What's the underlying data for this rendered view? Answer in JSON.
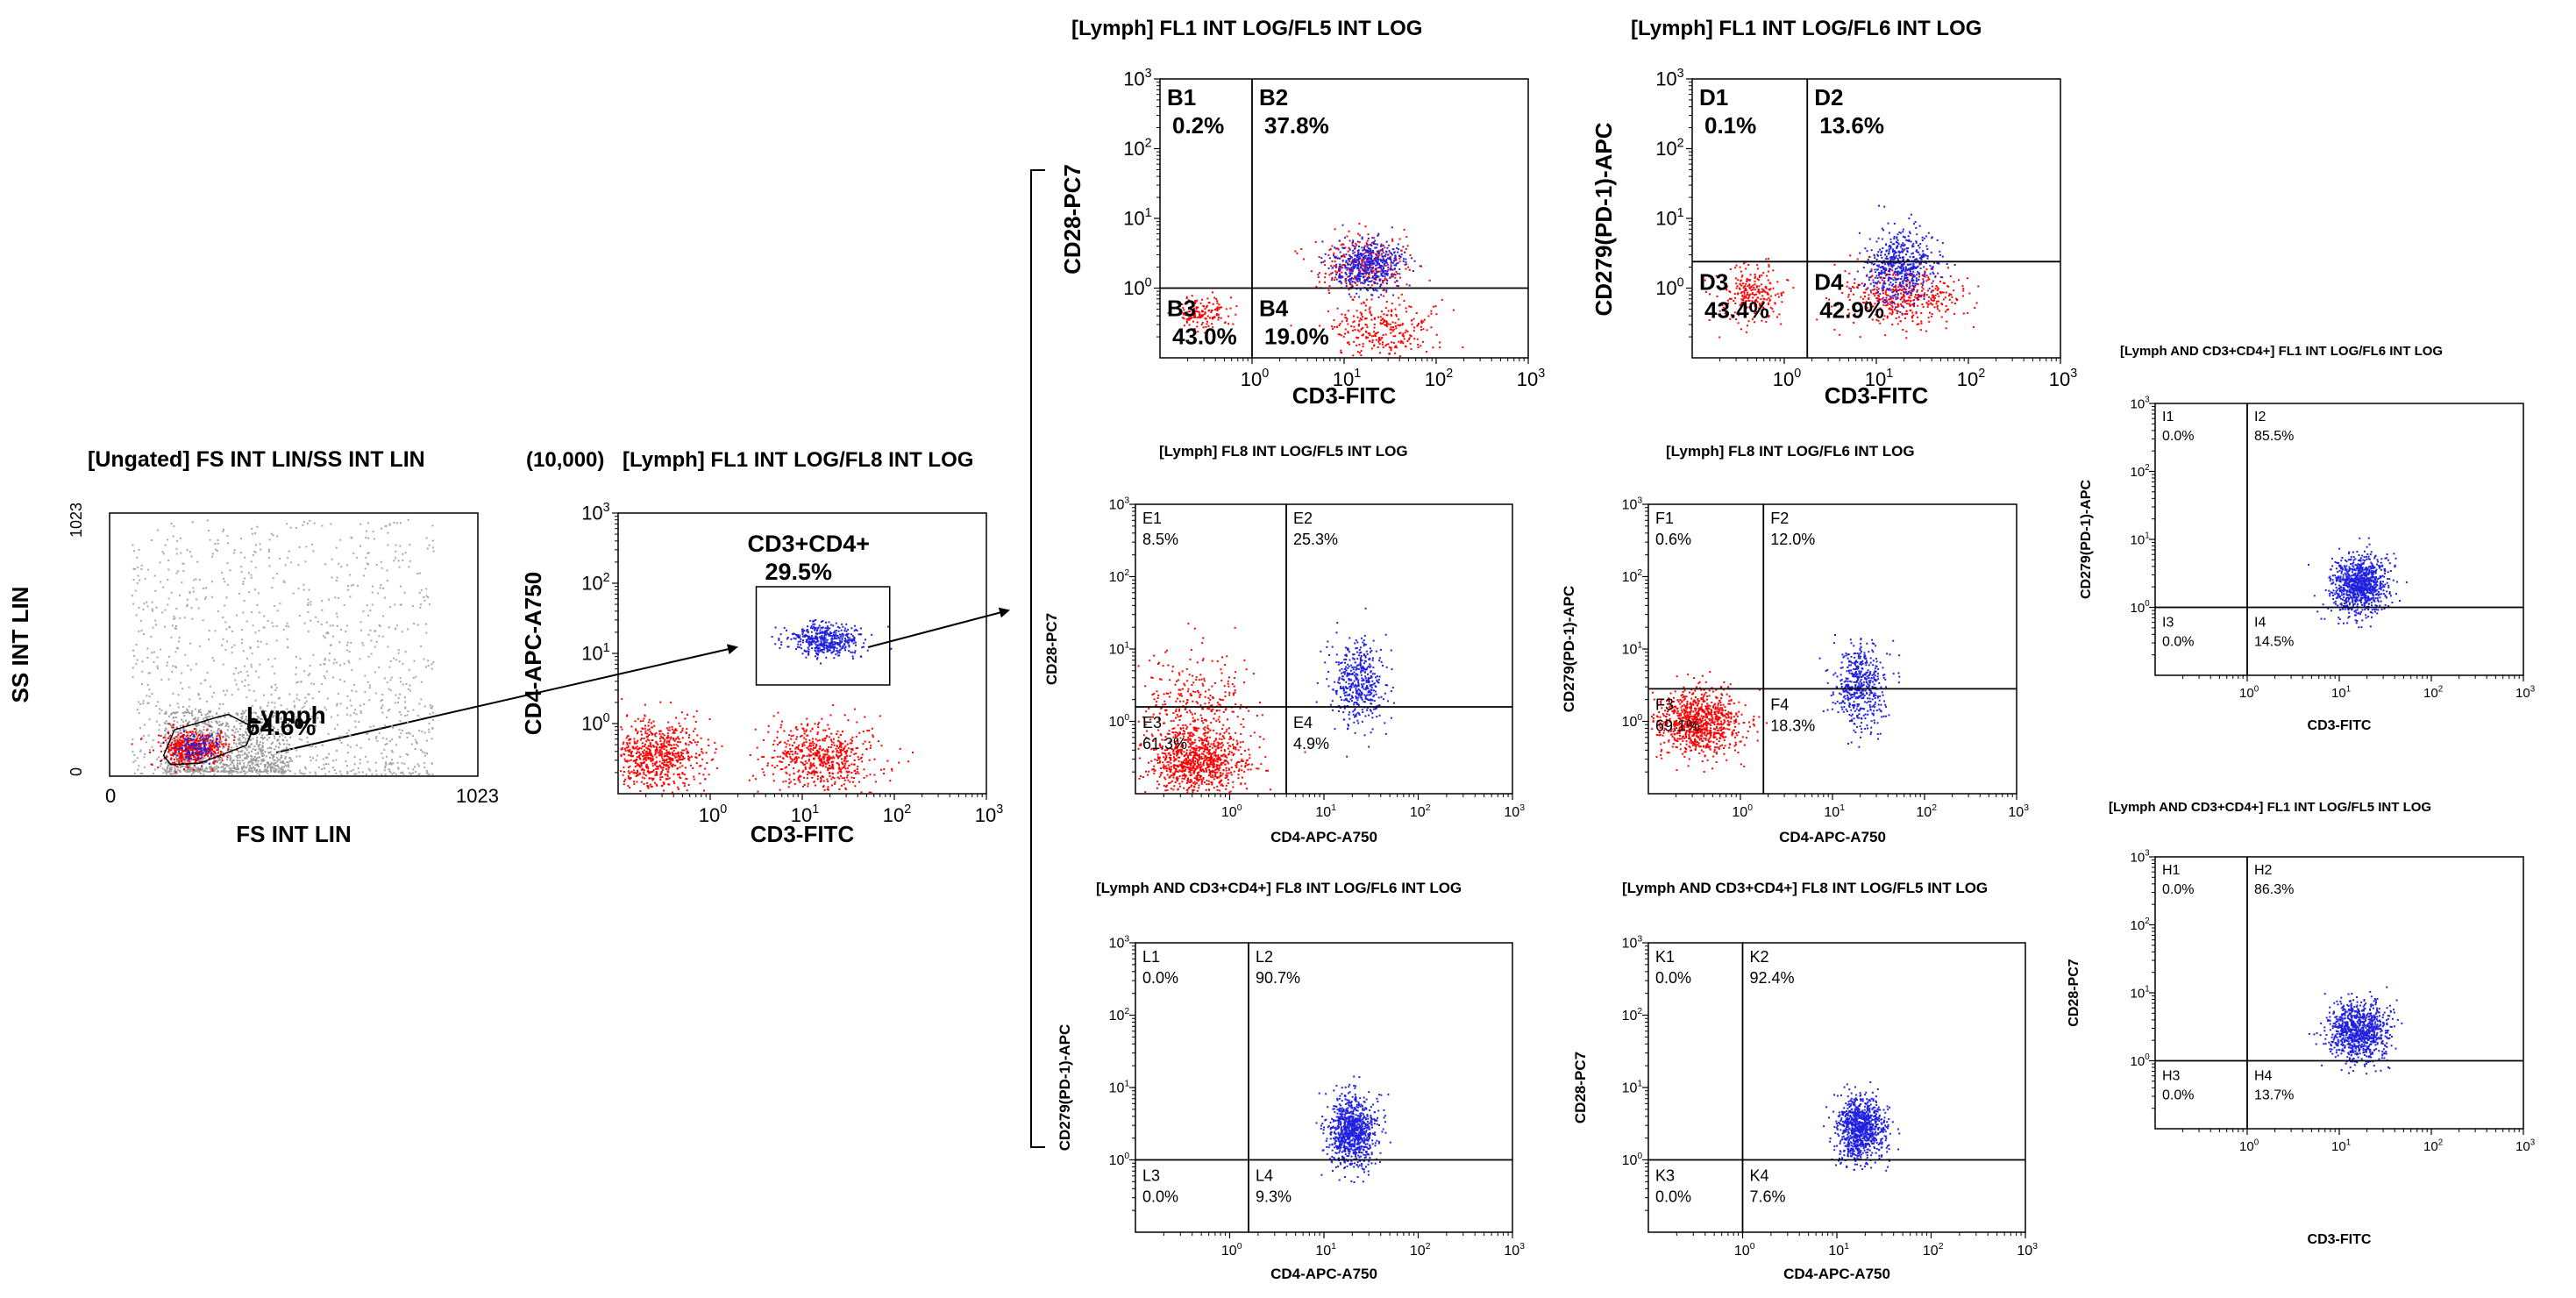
{
  "chart_data": [
    {
      "id": "scatter",
      "type": "scatter",
      "title": "[Ungated] FS INT LIN/SS INT LIN",
      "xlabel": "FS INT LIN",
      "ylabel": "SS INT LIN",
      "xscale": "linear",
      "yscale": "linear",
      "xlim": [
        0,
        1023
      ],
      "ylim": [
        0,
        1023
      ],
      "xticks": [
        {
          "v": 0,
          "label": "0"
        },
        {
          "v": 1023,
          "label": "1023"
        }
      ],
      "yticks": [
        {
          "v": 0,
          "label": "0"
        },
        {
          "v": 1023,
          "label": "1023"
        }
      ],
      "gates": [
        {
          "name": "Lymph",
          "percent": "64.6%",
          "polygon": [
            [
              150,
              80
            ],
            [
              180,
              180
            ],
            [
              300,
              230
            ],
            [
              330,
              240
            ],
            [
              400,
              190
            ],
            [
              380,
              120
            ],
            [
              250,
              50
            ],
            [
              170,
              45
            ]
          ]
        }
      ],
      "populations": [
        {
          "name": "all-events",
          "color": "#a8a8a8",
          "n": 1200,
          "x": [
            60,
            900
          ],
          "y": [
            10,
            1000
          ],
          "dist": "uniform"
        },
        {
          "name": "all-events-dense",
          "color": "#9a9a9a",
          "n": 900,
          "x": [
            150,
            500
          ],
          "y": [
            20,
            260
          ],
          "dist": "uniform"
        },
        {
          "name": "lymph-core-red",
          "color": "#ff0000",
          "n": 500,
          "cx": 230,
          "cy": 110,
          "sx": 45,
          "sy": 35
        },
        {
          "name": "lymph-core-blue",
          "color": "#2020e0",
          "n": 120,
          "cx": 240,
          "cy": 115,
          "sx": 30,
          "sy": 25
        }
      ]
    },
    {
      "id": "P1",
      "type": "scatter",
      "prefix": "(10,000)",
      "title": "[Lymph] FL1 INT LOG/FL8 INT LOG",
      "xlabel": "CD3-FITC",
      "ylabel": "CD4-APC-A750",
      "xscale": "log",
      "yscale": "log",
      "xlim": [
        -1,
        3
      ],
      "ylim": [
        -1,
        3
      ],
      "gates": [
        {
          "name": "CD3+CD4+",
          "percent": "29.5%",
          "x": [
            0.5,
            1.95
          ],
          "y": [
            0.55,
            1.95
          ]
        }
      ],
      "populations": [
        {
          "name": "cd3neg-cd4neg",
          "color": "#ff0000",
          "n": 700,
          "cx": -0.6,
          "cy": -0.45,
          "sx": 0.25,
          "sy": 0.25
        },
        {
          "name": "cd3pos-cd4neg",
          "color": "#ff0000",
          "n": 600,
          "cx": 1.2,
          "cy": -0.45,
          "sx": 0.3,
          "sy": 0.25
        },
        {
          "name": "cd3pos-cd4pos",
          "color": "#2020e0",
          "n": 450,
          "cx": 1.25,
          "cy": 1.2,
          "sx": 0.2,
          "sy": 0.12
        }
      ]
    },
    {
      "id": "B",
      "type": "scatter",
      "title": "[Lymph] FL1 INT LOG/FL5 INT LOG",
      "xlabel": "CD3-FITC",
      "ylabel": "CD28-PC7",
      "xscale": "log",
      "yscale": "log",
      "xlim": [
        -1,
        3
      ],
      "ylim": [
        -1,
        3
      ],
      "quad": {
        "x": 0.0,
        "y": 0.0
      },
      "quadrants": [
        {
          "id": "B1",
          "label": "B1",
          "percent": "0.2%"
        },
        {
          "id": "B2",
          "label": "B2",
          "percent": "37.8%"
        },
        {
          "id": "B3",
          "label": "B3",
          "percent": "43.0%"
        },
        {
          "id": "B4",
          "label": "B4",
          "percent": "19.0%"
        }
      ],
      "populations": [
        {
          "name": "b3",
          "color": "#ff0000",
          "n": 150,
          "cx": -0.55,
          "cy": -0.35,
          "sx": 0.15,
          "sy": 0.12
        },
        {
          "name": "b2-red",
          "color": "#ff0000",
          "n": 300,
          "cx": 1.2,
          "cy": 0.35,
          "sx": 0.25,
          "sy": 0.2
        },
        {
          "name": "b4",
          "color": "#ff0000",
          "n": 300,
          "cx": 1.4,
          "cy": -0.55,
          "sx": 0.3,
          "sy": 0.22
        },
        {
          "name": "b2-blue",
          "color": "#2020e0",
          "n": 500,
          "cx": 1.25,
          "cy": 0.35,
          "sx": 0.2,
          "sy": 0.18
        }
      ]
    },
    {
      "id": "D",
      "type": "scatter",
      "title": "[Lymph] FL1 INT LOG/FL6 INT LOG",
      "xlabel": "CD3-FITC",
      "ylabel": "CD279(PD-1)-APC",
      "xscale": "log",
      "yscale": "log",
      "xlim": [
        -1,
        3
      ],
      "ylim": [
        -1,
        3
      ],
      "quad": {
        "x": 0.25,
        "y": 0.38
      },
      "quadrants": [
        {
          "id": "D1",
          "label": "D1",
          "percent": "0.1%"
        },
        {
          "id": "D2",
          "label": "D2",
          "percent": "13.6%"
        },
        {
          "id": "D3",
          "label": "D3",
          "percent": "43.4%"
        },
        {
          "id": "D4",
          "label": "D4",
          "percent": "42.9%"
        }
      ],
      "populations": [
        {
          "name": "d3",
          "color": "#ff0000",
          "n": 250,
          "cx": -0.35,
          "cy": -0.05,
          "sx": 0.18,
          "sy": 0.2
        },
        {
          "name": "d4",
          "color": "#ff0000",
          "n": 450,
          "cx": 1.3,
          "cy": -0.1,
          "sx": 0.32,
          "sy": 0.22
        },
        {
          "name": "d2-blue",
          "color": "#2020e0",
          "n": 550,
          "cx": 1.25,
          "cy": 0.35,
          "sx": 0.18,
          "sy": 0.25
        }
      ]
    },
    {
      "id": "E",
      "type": "scatter",
      "title": "[Lymph] FL8 INT LOG/FL5 INT LOG",
      "xlabel": "CD4-APC-A750",
      "ylabel": "CD28-PC7",
      "xscale": "log",
      "yscale": "log",
      "xlim": [
        -1,
        3
      ],
      "ylim": [
        -1,
        3
      ],
      "quad": {
        "x": 0.6,
        "y": 0.2
      },
      "quadrants": [
        {
          "id": "E1",
          "label": "E1",
          "percent": "8.5%"
        },
        {
          "id": "E2",
          "label": "E2",
          "percent": "25.3%"
        },
        {
          "id": "E3",
          "label": "E3",
          "percent": "61.3%"
        },
        {
          "id": "E4",
          "label": "E4",
          "percent": "4.9%"
        }
      ],
      "populations": [
        {
          "name": "e3-dense",
          "color": "#ff0000",
          "n": 900,
          "cx": -0.35,
          "cy": -0.55,
          "sx": 0.28,
          "sy": 0.22
        },
        {
          "name": "e1-spread",
          "color": "#ff0000",
          "n": 300,
          "cx": -0.35,
          "cy": 0.25,
          "sx": 0.28,
          "sy": 0.35
        },
        {
          "name": "e2-blue",
          "color": "#2020e0",
          "n": 450,
          "cx": 1.35,
          "cy": 0.55,
          "sx": 0.14,
          "sy": 0.28
        }
      ]
    },
    {
      "id": "F",
      "type": "scatter",
      "title": "[Lymph] FL8 INT LOG/FL6 INT LOG",
      "xlabel": "CD4-APC-A750",
      "ylabel": "CD279(PD-1)-APC",
      "xscale": "log",
      "yscale": "log",
      "xlim": [
        -1,
        3
      ],
      "ylim": [
        -1,
        3
      ],
      "quad": {
        "x": 0.25,
        "y": 0.45
      },
      "quadrants": [
        {
          "id": "F1",
          "label": "F1",
          "percent": "0.6%"
        },
        {
          "id": "F2",
          "label": "F2",
          "percent": "12.0%"
        },
        {
          "id": "F3",
          "label": "F3",
          "percent": "69.1%"
        },
        {
          "id": "F4",
          "label": "F4",
          "percent": "18.3%"
        }
      ],
      "populations": [
        {
          "name": "f3",
          "color": "#ff0000",
          "n": 900,
          "cx": -0.45,
          "cy": 0.0,
          "sx": 0.22,
          "sy": 0.22
        },
        {
          "name": "f4-blue",
          "color": "#2020e0",
          "n": 500,
          "cx": 1.3,
          "cy": 0.5,
          "sx": 0.14,
          "sy": 0.28
        }
      ]
    },
    {
      "id": "I",
      "type": "scatter",
      "title": "[Lymph AND CD3+CD4+] FL1 INT LOG/FL6 INT LOG",
      "xlabel": "CD3-FITC",
      "ylabel": "CD279(PD-1)-APC",
      "xscale": "log",
      "yscale": "log",
      "xlim": [
        -1,
        3
      ],
      "ylim": [
        -1,
        3
      ],
      "quad": {
        "x": 0.0,
        "y": 0.0
      },
      "quadrants": [
        {
          "id": "I1",
          "label": "I1",
          "percent": "0.0%"
        },
        {
          "id": "I2",
          "label": "I2",
          "percent": "85.5%"
        },
        {
          "id": "I3",
          "label": "I3",
          "percent": "0.0%"
        },
        {
          "id": "I4",
          "label": "I4",
          "percent": "14.5%"
        }
      ],
      "populations": [
        {
          "name": "i-blue",
          "color": "#2020e0",
          "n": 900,
          "cx": 1.2,
          "cy": 0.35,
          "sx": 0.16,
          "sy": 0.22
        }
      ]
    },
    {
      "id": "H",
      "type": "scatter",
      "title": "[Lymph AND CD3+CD4+] FL1 INT LOG/FL5 INT LOG",
      "xlabel": "CD3-FITC",
      "ylabel": "CD28-PC7",
      "xscale": "log",
      "yscale": "log",
      "xlim": [
        -1,
        3
      ],
      "ylim": [
        -1,
        3
      ],
      "quad": {
        "x": 0.0,
        "y": 0.0
      },
      "quadrants": [
        {
          "id": "H1",
          "label": "H1",
          "percent": "0.0%"
        },
        {
          "id": "H2",
          "label": "H2",
          "percent": "86.3%"
        },
        {
          "id": "H3",
          "label": "H3",
          "percent": "0.0%"
        },
        {
          "id": "H4",
          "label": "H4",
          "percent": "13.7%"
        }
      ],
      "populations": [
        {
          "name": "h-blue",
          "color": "#2020e0",
          "n": 900,
          "cx": 1.2,
          "cy": 0.45,
          "sx": 0.16,
          "sy": 0.22
        }
      ]
    },
    {
      "id": "L",
      "type": "scatter",
      "title": "[Lymph AND CD3+CD4+] FL8 INT LOG/FL6 INT LOG",
      "xlabel": "CD4-APC-A750",
      "ylabel": "CD279(PD-1)-APC",
      "xscale": "log",
      "yscale": "log",
      "xlim": [
        -1,
        3
      ],
      "ylim": [
        -1,
        3
      ],
      "quad": {
        "x": 0.2,
        "y": 0.0
      },
      "quadrants": [
        {
          "id": "L1",
          "label": "L1",
          "percent": "0.0%"
        },
        {
          "id": "L2",
          "label": "L2",
          "percent": "90.7%"
        },
        {
          "id": "L3",
          "label": "L3",
          "percent": "0.0%"
        },
        {
          "id": "L4",
          "label": "L4",
          "percent": "9.3%"
        }
      ],
      "populations": [
        {
          "name": "l-blue",
          "color": "#2020e0",
          "n": 900,
          "cx": 1.3,
          "cy": 0.4,
          "sx": 0.13,
          "sy": 0.25
        }
      ]
    },
    {
      "id": "K",
      "type": "scatter",
      "title": "[Lymph AND CD3+CD4+] FL8 INT LOG/FL5 INT LOG",
      "xlabel": "CD4-APC-A750",
      "ylabel": "CD28-PC7",
      "xscale": "log",
      "yscale": "log",
      "xlim": [
        -1,
        3
      ],
      "ylim": [
        -1,
        3
      ],
      "quad": {
        "x": 0.0,
        "y": 0.0
      },
      "quadrants": [
        {
          "id": "K1",
          "label": "K1",
          "percent": "0.0%"
        },
        {
          "id": "K2",
          "label": "K2",
          "percent": "92.4%"
        },
        {
          "id": "K3",
          "label": "K3",
          "percent": "0.0%"
        },
        {
          "id": "K4",
          "label": "K4",
          "percent": "7.6%"
        }
      ],
      "populations": [
        {
          "name": "k-blue",
          "color": "#2020e0",
          "n": 900,
          "cx": 1.25,
          "cy": 0.45,
          "sx": 0.13,
          "sy": 0.22
        }
      ]
    }
  ]
}
